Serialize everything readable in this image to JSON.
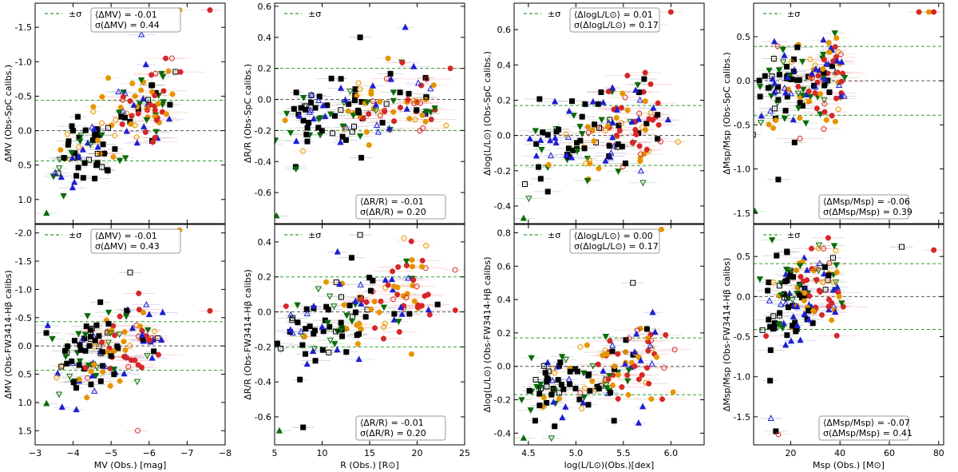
{
  "figure": {
    "legend_label": "±σ",
    "sigma_line_color": "#2ca02c",
    "zero_line_color": "#555555",
    "marker_colors": {
      "black": "#000000",
      "blue": "#1f1fd0",
      "green": "#0a6b0a",
      "orange": "#e69500",
      "red": "#d62728"
    }
  },
  "chart_data": [
    {
      "type": "scatter",
      "id": "mv-spc",
      "xlabel": "",
      "ylabel": "ΔMV (Obs-SpC calibs.)",
      "xlim": [
        -3,
        -8
      ],
      "ylim": [
        1.35,
        -1.85
      ],
      "y_inverted": true,
      "xticks": [
        -3,
        -4,
        -5,
        -6,
        -7,
        -8
      ],
      "xtick_labels": [
        "",
        "",
        "",
        "",
        "",
        ""
      ],
      "yticks": [
        1.0,
        0.5,
        0.0,
        -0.5,
        -1.0,
        -1.5
      ],
      "ytick_labels": [
        "1.0",
        "0.5",
        "0.0",
        "-0.5",
        "-1.0",
        "-1.5"
      ],
      "sigma": 0.44,
      "mean": -0.01,
      "stats": [
        "⟨ΔMV⟩ = -0.01",
        "σ(ΔMV) = 0.44"
      ],
      "stat_pos": "top-center",
      "legend_pos": "top-left",
      "trend": {
        "x": [
          -3.5,
          -6.5
        ],
        "y": [
          0.6,
          -0.6
        ],
        "spread": 0.3
      },
      "extra_points": [
        [
          -7.6,
          -1.75,
          "red",
          "circle"
        ],
        [
          -6.8,
          -1.75,
          "orange",
          "circle"
        ],
        [
          -6.6,
          -1.05,
          "red",
          "ocircle"
        ],
        [
          -3.3,
          1.2,
          "green",
          "tri"
        ]
      ]
    },
    {
      "type": "scatter",
      "id": "r-spc",
      "xlabel": "",
      "ylabel": "ΔR/R (Obs-SpC calibs.)",
      "xlim": [
        5,
        25
      ],
      "ylim": [
        -0.8,
        0.62
      ],
      "xticks": [
        5,
        10,
        15,
        20,
        25
      ],
      "xtick_labels": [
        "",
        "",
        "",
        "",
        ""
      ],
      "yticks": [
        -0.8,
        -0.6,
        -0.4,
        -0.2,
        0.0,
        0.2,
        0.4,
        0.6
      ],
      "ytick_labels": [
        "",
        "-0.6",
        "-0.4",
        "-0.2",
        "0.0",
        "0.2",
        "0.4",
        "0.6"
      ],
      "sigma": 0.2,
      "mean": -0.01,
      "stats": [
        "⟨ΔR/R⟩ = -0.01",
        "σ(ΔR/R) = 0.20"
      ],
      "stat_pos": "bottom-center",
      "legend_pos": "top-left",
      "trend": {
        "x": [
          6.0,
          22.0
        ],
        "y": [
          -0.2,
          0.05
        ],
        "spread": 0.14
      },
      "extra_points": [
        [
          5.2,
          -0.75,
          "green",
          "tri"
        ],
        [
          14.0,
          0.4,
          "black",
          "square"
        ],
        [
          23.5,
          0.2,
          "red",
          "circle"
        ]
      ]
    },
    {
      "type": "scatter",
      "id": "l-spc",
      "xlabel": "",
      "ylabel": "Δlog(L/L⊙) (Obs-SpC calibs.)",
      "xlim": [
        4.35,
        6.35
      ],
      "ylim": [
        -0.5,
        0.75
      ],
      "xticks": [
        4.5,
        5.0,
        5.5,
        6.0
      ],
      "xtick_labels": [
        "",
        "",
        "",
        ""
      ],
      "yticks": [
        -0.4,
        -0.2,
        0.0,
        0.2,
        0.4,
        0.6
      ],
      "ytick_labels": [
        "-0.4",
        "-0.2",
        "0.0",
        "0.2",
        "0.4",
        "0.6"
      ],
      "sigma": 0.17,
      "mean": 0.01,
      "stats": [
        "⟨ΔlogL/L⊙⟩ = 0.01",
        "σ(ΔlogL/L⊙) = 0.17"
      ],
      "stat_pos": "top-center",
      "legend_pos": "top-left",
      "trend": {
        "x": [
          4.5,
          5.9
        ],
        "y": [
          -0.12,
          0.1
        ],
        "spread": 0.13
      },
      "extra_points": [
        [
          6.0,
          0.7,
          "red",
          "circle"
        ],
        [
          5.85,
          0.63,
          "orange",
          "circle"
        ],
        [
          4.45,
          -0.47,
          "green",
          "tri"
        ]
      ]
    },
    {
      "type": "scatter",
      "id": "m-spc",
      "xlabel": "",
      "ylabel": "ΔMsp/Msp (Obs-SpC calibs.)",
      "xlim": [
        5,
        82
      ],
      "ylim": [
        -1.62,
        0.88
      ],
      "xticks": [
        20,
        40,
        60,
        80
      ],
      "xtick_labels": [
        "",
        "",
        "",
        ""
      ],
      "yticks": [
        -1.5,
        -1.0,
        -0.5,
        0.0,
        0.5
      ],
      "ytick_labels": [
        "-1.5",
        "-1.0",
        "-0.5",
        "0.0",
        "0.5"
      ],
      "sigma": 0.39,
      "mean": -0.06,
      "stats": [
        "⟨ΔMsp/Msp⟩ = -0.06",
        "σ(ΔMsp/Msp) = 0.39"
      ],
      "stat_pos": "bottom-right",
      "legend_pos": "top-left",
      "trend": {
        "x": [
          8,
          40
        ],
        "y": [
          -0.2,
          0.15
        ],
        "spread": 0.25
      },
      "extra_points": [
        [
          72,
          0.78,
          "red",
          "circle"
        ],
        [
          76,
          0.78,
          "orange",
          "circle"
        ],
        [
          78,
          0.78,
          "red",
          "circle"
        ],
        [
          15,
          -1.12,
          "black",
          "square"
        ],
        [
          5.5,
          -1.48,
          "green",
          "tri"
        ]
      ]
    },
    {
      "type": "scatter",
      "id": "mv-fw",
      "xlabel": "MV (Obs.) [mag]",
      "ylabel": "ΔMV (Obs-FW3414-Hβ calibs)",
      "xlim": [
        -3,
        -8
      ],
      "ylim": [
        1.75,
        -2.15
      ],
      "y_inverted": true,
      "xticks": [
        -3,
        -4,
        -5,
        -6,
        -7,
        -8
      ],
      "xtick_labels": [
        "−3",
        "−4",
        "−5",
        "−6",
        "−7",
        "−8"
      ],
      "yticks": [
        1.5,
        1.0,
        0.5,
        0.0,
        -0.5,
        -1.0,
        -1.5,
        -2.0
      ],
      "ytick_labels": [
        "1.5",
        "1.0",
        "0.5",
        "0.0",
        "-0.5",
        "-1.0",
        "-1.5",
        "-2.0"
      ],
      "sigma": 0.43,
      "mean": -0.01,
      "stats": [
        "⟨ΔMV⟩ = -0.01",
        "σ(ΔMV) = 0.43"
      ],
      "stat_pos": "top-center",
      "legend_pos": "top-left",
      "trend": {
        "x": [
          -3.5,
          -6.2
        ],
        "y": [
          0.45,
          -0.3
        ],
        "spread": 0.33
      },
      "extra_points": [
        [
          -6.8,
          -2.05,
          "orange",
          "circle"
        ],
        [
          -7.6,
          -0.62,
          "red",
          "circle"
        ],
        [
          -5.5,
          -1.3,
          "black",
          "osquare"
        ],
        [
          -5.7,
          1.5,
          "red",
          "ocircle"
        ],
        [
          -3.3,
          1.02,
          "green",
          "tri"
        ]
      ]
    },
    {
      "type": "scatter",
      "id": "r-fw",
      "xlabel": "R (Obs.) [R⊙]",
      "ylabel": "ΔR/R (Obs-FW3414-Hβ calibs)",
      "xlim": [
        5,
        25
      ],
      "ylim": [
        -0.76,
        0.5
      ],
      "xticks": [
        5,
        10,
        15,
        20,
        25
      ],
      "xtick_labels": [
        "5",
        "10",
        "15",
        "20",
        "25"
      ],
      "yticks": [
        -0.6,
        -0.4,
        -0.2,
        0.0,
        0.2,
        0.4
      ],
      "ytick_labels": [
        "-0.6",
        "-0.4",
        "-0.2",
        "0.0",
        "0.2",
        "0.4"
      ],
      "sigma": 0.2,
      "mean": -0.01,
      "stats": [
        "⟨ΔR/R⟩ = -0.01",
        "σ(ΔR/R) = 0.20"
      ],
      "stat_pos": "bottom-center",
      "legend_pos": "top-left",
      "trend": {
        "x": [
          6.0,
          22.0
        ],
        "y": [
          -0.15,
          0.15
        ],
        "spread": 0.13
      },
      "extra_points": [
        [
          5.5,
          -0.68,
          "green",
          "tri"
        ],
        [
          8.0,
          -0.66,
          "black",
          "square"
        ],
        [
          14.0,
          0.44,
          "black",
          "osquare"
        ],
        [
          24.0,
          0.24,
          "red",
          "ocircle"
        ]
      ]
    },
    {
      "type": "scatter",
      "id": "l-fw",
      "xlabel": "log(L/L⊙)(Obs.)[dex]",
      "ylabel": "Δlog(L/L⊙) (Obs-FW3414-Hβ calibs)",
      "xlim": [
        4.35,
        6.35
      ],
      "ylim": [
        -0.47,
        0.85
      ],
      "xticks": [
        4.5,
        5.0,
        5.5,
        6.0
      ],
      "xtick_labels": [
        "4.5",
        "5.0",
        "5.5",
        "6.0"
      ],
      "yticks": [
        -0.4,
        -0.2,
        0.0,
        0.2,
        0.4,
        0.6,
        0.8
      ],
      "ytick_labels": [
        "-0.4",
        "-0.2",
        "0.0",
        "0.2",
        "0.4",
        "0.6",
        "0.8"
      ],
      "sigma": 0.17,
      "mean": 0.0,
      "stats": [
        "⟨ΔlogL/L⊙⟩ = 0.00",
        "σ(ΔlogL/L⊙) = 0.17"
      ],
      "stat_pos": "top-center",
      "legend_pos": "top-left",
      "trend": {
        "x": [
          4.55,
          5.9
        ],
        "y": [
          -0.15,
          0.05
        ],
        "spread": 0.12
      },
      "extra_points": [
        [
          5.9,
          0.82,
          "orange",
          "circle"
        ],
        [
          5.6,
          0.5,
          "black",
          "osquare"
        ],
        [
          4.45,
          -0.43,
          "green",
          "tri"
        ]
      ]
    },
    {
      "type": "scatter",
      "id": "m-fw",
      "xlabel": "Msp (Obs.) [M⊙]",
      "ylabel": "ΔMsp/Msp (Obs-FW3414-Hβ calibs)",
      "xlim": [
        5,
        82
      ],
      "ylim": [
        -1.85,
        0.9
      ],
      "xticks": [
        20,
        40,
        60,
        80
      ],
      "xtick_labels": [
        "20",
        "40",
        "60",
        "80"
      ],
      "yticks": [
        -1.5,
        -1.0,
        -0.5,
        0.0,
        0.5
      ],
      "ytick_labels": [
        "-1.5",
        "-1.0",
        "-0.5",
        "0.0",
        "0.5"
      ],
      "sigma": 0.41,
      "mean": -0.07,
      "stats": [
        "⟨ΔMsp/Msp⟩ = -0.07",
        "σ(ΔMsp/Msp) = 0.41"
      ],
      "stat_pos": "bottom-right",
      "legend_pos": "top-left",
      "trend": {
        "x": [
          8,
          40
        ],
        "y": [
          -0.25,
          0.3
        ],
        "spread": 0.28
      },
      "extra_points": [
        [
          78,
          0.58,
          "red",
          "circle"
        ],
        [
          65,
          0.62,
          "black",
          "osquare"
        ],
        [
          14,
          -1.68,
          "black",
          "square"
        ],
        [
          15,
          -1.72,
          "red",
          "ocircle"
        ],
        [
          12,
          -1.52,
          "blue",
          "otri"
        ]
      ]
    }
  ]
}
